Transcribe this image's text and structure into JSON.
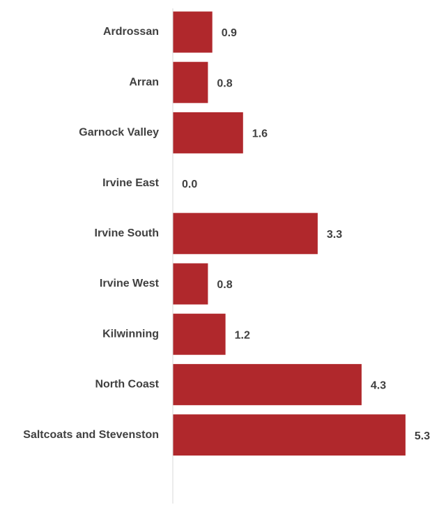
{
  "chart_data": {
    "type": "bar",
    "orientation": "horizontal",
    "categories": [
      "Ardrossan",
      "Arran",
      "Garnock Valley",
      "Irvine East",
      "Irvine South",
      "Irvine West",
      "Kilwinning",
      "North Coast",
      "Saltcoats and Stevenston"
    ],
    "values": [
      0.9,
      0.8,
      1.6,
      0.0,
      3.3,
      0.8,
      1.2,
      4.3,
      5.3
    ],
    "value_labels": [
      "0.9",
      "0.8",
      "1.6",
      "0.0",
      "3.3",
      "0.8",
      "1.2",
      "4.3",
      "5.3"
    ],
    "title": "",
    "xlabel": "",
    "ylabel": "",
    "xlim": [
      0,
      5.5
    ],
    "grid": false,
    "bar_color": "#B0282C",
    "axis_color": "#D9D9D9",
    "text_color": "#404040"
  }
}
